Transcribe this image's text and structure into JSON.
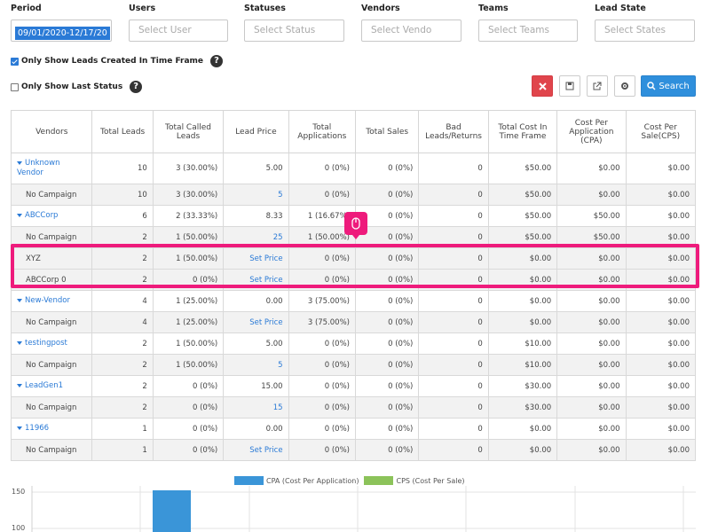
{
  "filters": {
    "period": {
      "label": "Period",
      "value": "09/01/2020-12/17/20"
    },
    "users": {
      "label": "Users",
      "placeholder": "Select User"
    },
    "statuses": {
      "label": "Statuses",
      "placeholder": "Select Status"
    },
    "vendors": {
      "label": "Vendors",
      "placeholder": "Select Vendo"
    },
    "teams": {
      "label": "Teams",
      "placeholder": "Select Teams"
    },
    "lead_state": {
      "label": "Lead State",
      "placeholder": "Select States"
    }
  },
  "options": {
    "only_time_frame": {
      "label": "Only Show Leads Created In Time Frame",
      "checked": true
    },
    "only_last_status": {
      "label": "Only Show Last Status",
      "checked": false
    }
  },
  "toolbar": {
    "search_label": "Search",
    "icons": [
      "close-icon",
      "save-icon",
      "export-icon",
      "gear-icon",
      "search-icon"
    ]
  },
  "table": {
    "headers": [
      "Vendors",
      "Total Leads",
      "Total Called Leads",
      "Lead Price",
      "Total Applications",
      "Total Sales",
      "Bad Leads/Returns",
      "Total Cost In Time Frame",
      "Cost Per Application (CPA)",
      "Cost Per Sale(CPS)"
    ],
    "rows": [
      {
        "type": "vendor",
        "cells": [
          "Unknown Vendor",
          "10",
          "3 (30.00%)",
          "5.00",
          "0 (0%)",
          "0 (0%)",
          "0",
          "$50.00",
          "$0.00",
          "$0.00"
        ]
      },
      {
        "type": "sub",
        "cells": [
          "No Campaign",
          "10",
          "3 (30.00%)",
          "5",
          "0 (0%)",
          "0 (0%)",
          "0",
          "$50.00",
          "$0.00",
          "$0.00"
        ]
      },
      {
        "type": "vendor",
        "cells": [
          "ABCCorp",
          "6",
          "2 (33.33%)",
          "8.33",
          "1 (16.67%)",
          "0 (0%)",
          "0",
          "$50.00",
          "$50.00",
          "$0.00"
        ]
      },
      {
        "type": "sub",
        "cells": [
          "No Campaign",
          "2",
          "1 (50.00%)",
          "25",
          "1 (50.00%)",
          "0 (0%)",
          "0",
          "$50.00",
          "$50.00",
          "$0.00"
        ]
      },
      {
        "type": "sub",
        "cells": [
          "XYZ",
          "2",
          "1 (50.00%)",
          "Set Price",
          "0 (0%)",
          "0 (0%)",
          "0",
          "$0.00",
          "$0.00",
          "$0.00"
        ]
      },
      {
        "type": "sub",
        "cells": [
          "ABCCorp 0",
          "2",
          "0 (0%)",
          "Set Price",
          "0 (0%)",
          "0 (0%)",
          "0",
          "$0.00",
          "$0.00",
          "$0.00"
        ]
      },
      {
        "type": "vendor",
        "cells": [
          "New-Vendor",
          "4",
          "1 (25.00%)",
          "0.00",
          "3 (75.00%)",
          "0 (0%)",
          "0",
          "$0.00",
          "$0.00",
          "$0.00"
        ]
      },
      {
        "type": "sub",
        "cells": [
          "No Campaign",
          "4",
          "1 (25.00%)",
          "Set Price",
          "3 (75.00%)",
          "0 (0%)",
          "0",
          "$0.00",
          "$0.00",
          "$0.00"
        ]
      },
      {
        "type": "vendor",
        "cells": [
          "testingpost",
          "2",
          "1 (50.00%)",
          "5.00",
          "0 (0%)",
          "0 (0%)",
          "0",
          "$10.00",
          "$0.00",
          "$0.00"
        ]
      },
      {
        "type": "sub",
        "cells": [
          "No Campaign",
          "2",
          "1 (50.00%)",
          "5",
          "0 (0%)",
          "0 (0%)",
          "0",
          "$10.00",
          "$0.00",
          "$0.00"
        ]
      },
      {
        "type": "vendor",
        "cells": [
          "LeadGen1",
          "2",
          "0 (0%)",
          "15.00",
          "0 (0%)",
          "0 (0%)",
          "0",
          "$30.00",
          "$0.00",
          "$0.00"
        ]
      },
      {
        "type": "sub",
        "cells": [
          "No Campaign",
          "2",
          "0 (0%)",
          "15",
          "0 (0%)",
          "0 (0%)",
          "0",
          "$30.00",
          "$0.00",
          "$0.00"
        ]
      },
      {
        "type": "vendor",
        "cells": [
          "11966",
          "1",
          "0 (0%)",
          "0.00",
          "0 (0%)",
          "0 (0%)",
          "0",
          "$0.00",
          "$0.00",
          "$0.00"
        ]
      },
      {
        "type": "sub",
        "cells": [
          "No Campaign",
          "1",
          "0 (0%)",
          "Set Price",
          "0 (0%)",
          "0 (0%)",
          "0",
          "$0.00",
          "$0.00",
          "$0.00"
        ]
      }
    ]
  },
  "chart": {
    "legend": [
      {
        "name": "CPA (Cost Per Application)",
        "color": "#3a95d8"
      },
      {
        "name": "CPS (Cost Per Sale)",
        "color": "#8cc35a"
      }
    ],
    "y_ticks": [
      "150",
      "100"
    ]
  },
  "colors": {
    "accent": "#2a7ad6",
    "highlight": "#ee1b7c",
    "danger": "#e0454c"
  }
}
